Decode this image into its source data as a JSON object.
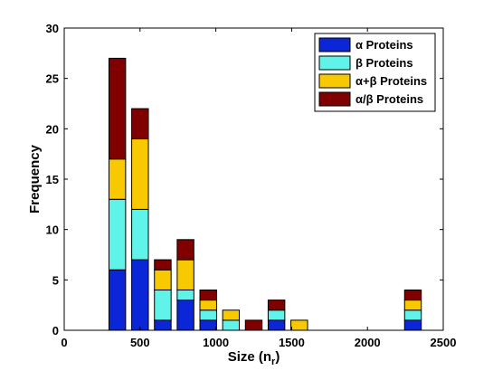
{
  "chart_data": {
    "type": "bar",
    "stacked": true,
    "xlabel": "Size (n",
    "xlabel_subscript": "r",
    "xlabel_close": ")",
    "ylabel": "Frequency",
    "xlim": [
      0,
      2500
    ],
    "ylim": [
      0,
      30
    ],
    "xticks": [
      0,
      500,
      1000,
      1500,
      2000,
      2500
    ],
    "yticks": [
      0,
      5,
      10,
      15,
      20,
      25,
      30
    ],
    "bar_width": 110,
    "x": [
      350,
      500,
      650,
      800,
      950,
      1100,
      1250,
      1400,
      1550,
      2300
    ],
    "series": [
      {
        "name": "α Proteins",
        "color": "#0a26d6",
        "values": [
          6,
          7,
          1,
          3,
          1,
          0,
          0,
          1,
          0,
          1
        ]
      },
      {
        "name": "β Proteins",
        "color": "#5ff3ea",
        "values": [
          7,
          5,
          3,
          1,
          1,
          1,
          0,
          1,
          0,
          1
        ]
      },
      {
        "name": "α+β Proteins",
        "color": "#f8c800",
        "values": [
          4,
          7,
          2,
          3,
          1,
          1,
          0,
          0,
          1,
          1
        ]
      },
      {
        "name": "α/β Proteins",
        "color": "#800000",
        "values": [
          10,
          3,
          1,
          2,
          1,
          0,
          1,
          1,
          0,
          1
        ]
      }
    ],
    "legend_position": "top-right",
    "grid": false
  }
}
